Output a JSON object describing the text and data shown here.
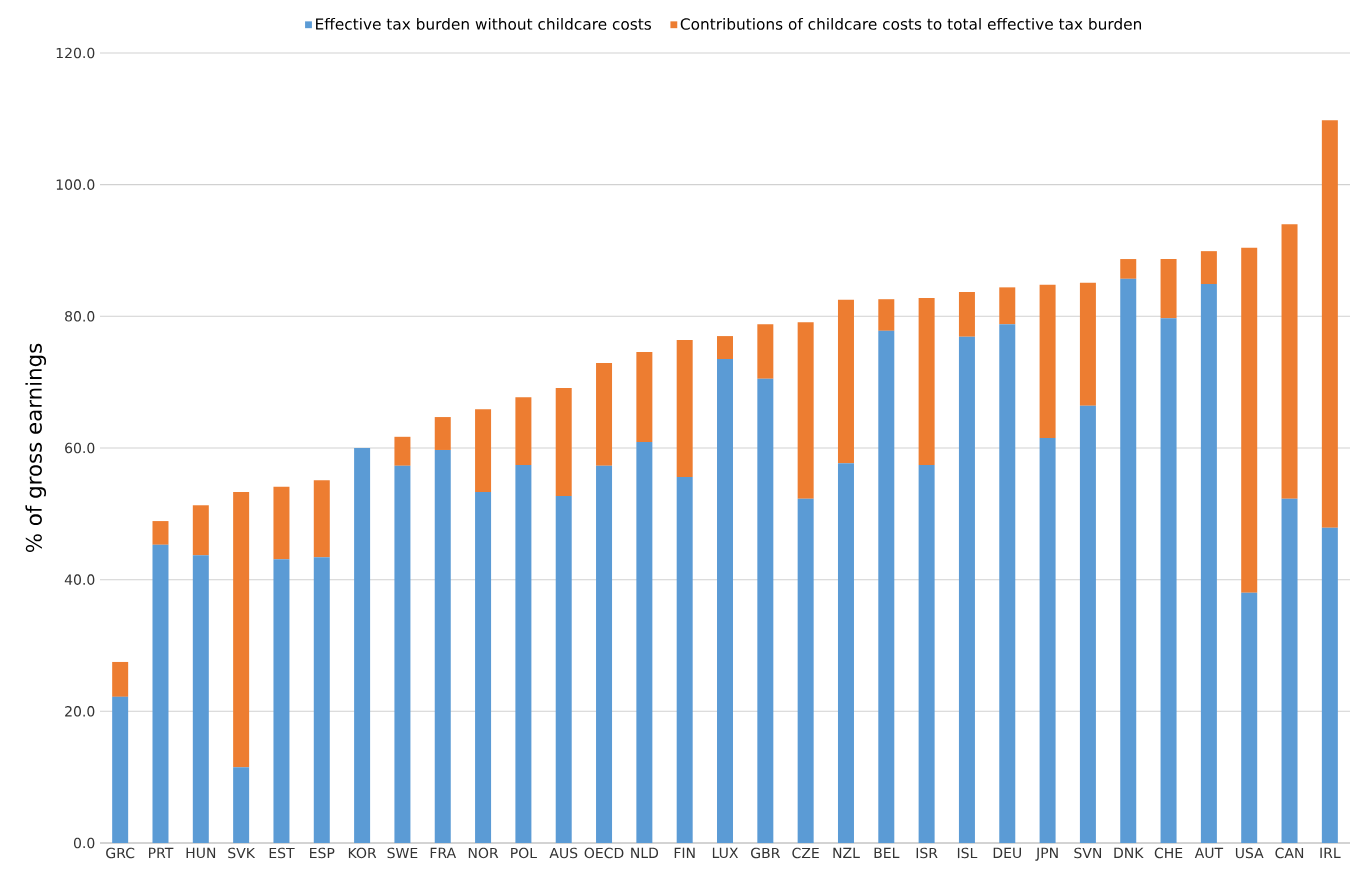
{
  "chart_data": {
    "type": "bar",
    "stacked": true,
    "ylabel": "% of gross earnings",
    "categories": [
      "GRC",
      "PRT",
      "HUN",
      "SVK",
      "EST",
      "ESP",
      "KOR",
      "SWE",
      "FRA",
      "NOR",
      "POL",
      "AUS",
      "OECD",
      "NLD",
      "FIN",
      "LUX",
      "GBR",
      "CZE",
      "NZL",
      "BEL",
      "ISR",
      "ISL",
      "DEU",
      "JPN",
      "SVN",
      "DNK",
      "CHE",
      "AUT",
      "USA",
      "CAN",
      "IRL"
    ],
    "series": [
      {
        "name": "Effective tax burden without childcare costs",
        "color": "#5b9bd5",
        "values": [
          22.2,
          45.3,
          43.7,
          11.5,
          43.1,
          43.4,
          60.0,
          57.3,
          59.7,
          53.3,
          57.4,
          52.7,
          57.3,
          60.9,
          55.6,
          73.5,
          70.5,
          52.3,
          57.7,
          77.8,
          57.4,
          76.9,
          78.8,
          61.5,
          66.4,
          85.7,
          79.7,
          84.9,
          38.0,
          52.3,
          47.9
        ]
      },
      {
        "name": "Contributions of childcare costs to total effective tax burden",
        "color": "#ed7d31",
        "values": [
          5.3,
          3.6,
          7.6,
          41.8,
          11.0,
          11.7,
          0.0,
          4.4,
          5.0,
          12.6,
          10.3,
          16.4,
          15.6,
          13.7,
          20.8,
          3.5,
          8.3,
          26.8,
          24.8,
          4.8,
          25.4,
          6.8,
          5.6,
          23.3,
          18.7,
          3.0,
          9.0,
          5.0,
          52.4,
          41.7,
          61.9
        ]
      }
    ],
    "ylim": [
      0,
      120
    ],
    "yticks": [
      {
        "value": 0,
        "label": "0.0"
      },
      {
        "value": 20,
        "label": "20.0"
      },
      {
        "value": 40,
        "label": "40.0"
      },
      {
        "value": 60,
        "label": "60.0"
      },
      {
        "value": 80,
        "label": "80.0"
      },
      {
        "value": 100,
        "label": "100.0"
      },
      {
        "value": 120,
        "label": "120.0"
      }
    ],
    "grid": "y",
    "legend": "top"
  }
}
